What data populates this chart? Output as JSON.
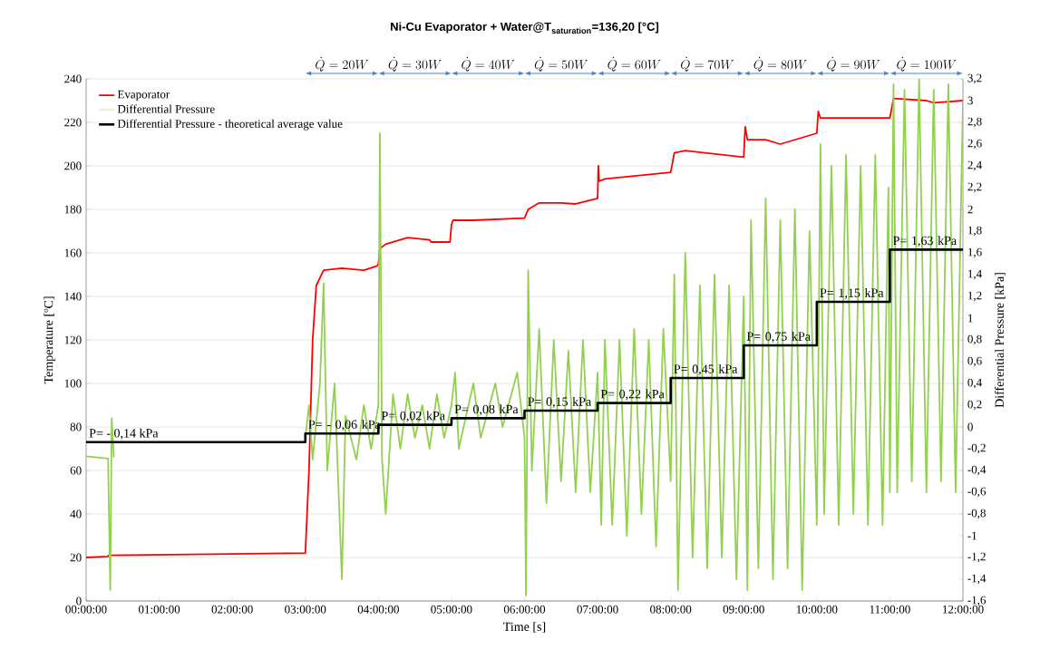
{
  "chart_data": {
    "type": "line",
    "title": "\\text{Ni-Cu Evaporator + Water@T}_{\\text{saturation}}\\text{=136,20 [°C]}",
    "xlabel": "Time [s]",
    "ylabel": "Temperature [ºC]",
    "y2label": "Differential Pressure [kPa]",
    "xlim": [
      0,
      12
    ],
    "xticks": [
      {
        "value": 0,
        "label": "00:00:00"
      },
      {
        "value": 1,
        "label": "01:00:00"
      },
      {
        "value": 2,
        "label": "02:00:00"
      },
      {
        "value": 3,
        "label": "03:00:00"
      },
      {
        "value": 4,
        "label": "04:00:00"
      },
      {
        "value": 5,
        "label": "05:00:00"
      },
      {
        "value": 6,
        "label": "06:00:00"
      },
      {
        "value": 7,
        "label": "07:00:00"
      },
      {
        "value": 8,
        "label": "08:00:00"
      },
      {
        "value": 9,
        "label": "09:00:00"
      },
      {
        "value": 10,
        "label": "10:00:00"
      },
      {
        "value": 11,
        "label": "11:00:00"
      },
      {
        "value": 12,
        "label": "12:00:00"
      }
    ],
    "ylim": [
      0,
      240
    ],
    "yticks": [
      0,
      20,
      40,
      60,
      80,
      100,
      120,
      140,
      160,
      180,
      200,
      220,
      240
    ],
    "y2lim": [
      -1.6,
      3.2
    ],
    "y2ticks": [
      {
        "value": -1.6,
        "label": "-1,6"
      },
      {
        "value": -1.4,
        "label": "-1,4"
      },
      {
        "value": -1.2,
        "label": "-1,2"
      },
      -1,
      {
        "value": -0.8,
        "label": "-0,8"
      },
      {
        "value": -0.6,
        "label": "-0,6"
      },
      {
        "value": -0.4,
        "label": "-0,4"
      },
      {
        "value": -0.2,
        "label": "-0,2"
      },
      0,
      {
        "value": 0.2,
        "label": "0,2"
      },
      {
        "value": 0.4,
        "label": "0,4"
      },
      {
        "value": 0.6,
        "label": "0,6"
      },
      {
        "value": 0.8,
        "label": "0,8"
      },
      1,
      {
        "value": 1.2,
        "label": "1,2"
      },
      {
        "value": 1.4,
        "label": "1,4"
      },
      {
        "value": 1.6,
        "label": "1,6"
      },
      {
        "value": 1.8,
        "label": "1,8"
      },
      2,
      {
        "value": 2.2,
        "label": "2,2"
      },
      {
        "value": 2.4,
        "label": "2,4"
      },
      {
        "value": 2.6,
        "label": "2,6"
      },
      {
        "value": 2.8,
        "label": "2,8"
      },
      3,
      {
        "value": 3.2,
        "label": "3,2"
      }
    ],
    "grid": "y",
    "legend": "top left",
    "series": [
      {
        "name": "Evaporator",
        "color": "#ff0000",
        "x": [
          0,
          0.3,
          0.31,
          3.0,
          3.05,
          3.1,
          3.15,
          3.25,
          3.5,
          3.8,
          3.98,
          4.0,
          4.02,
          4.1,
          4.4,
          4.7,
          4.72,
          4.98,
          5.0,
          5.02,
          5.3,
          6.0,
          6.05,
          6.2,
          6.5,
          6.7,
          7.0,
          7.01,
          7.02,
          7.1,
          8.0,
          8.05,
          8.2,
          9.0,
          9.02,
          9.05,
          9.3,
          9.5,
          10.0,
          10.02,
          10.05,
          11.0,
          11.05,
          11.5,
          11.6,
          12.0
        ],
        "values": [
          20,
          20.5,
          21,
          22,
          60,
          120,
          145,
          152,
          153,
          152,
          154,
          155,
          162,
          164,
          167,
          166,
          165,
          165,
          173,
          175,
          175,
          176,
          180,
          183,
          183,
          182.5,
          185,
          200,
          193,
          194,
          197,
          206,
          207,
          204,
          218,
          212,
          212,
          210,
          215,
          225,
          222,
          222,
          231,
          230,
          229,
          230
        ]
      },
      {
        "name": "Differential Pressure",
        "color": "#92d050",
        "axis": "y2",
        "x": [
          0.0,
          0.3,
          0.33,
          0.35,
          0.38,
          1.5,
          3.0,
          3.05,
          3.1,
          3.2,
          3.25,
          3.3,
          3.4,
          3.45,
          3.5,
          3.55,
          3.7,
          3.8,
          3.9,
          4.0,
          4.02,
          4.05,
          4.1,
          4.2,
          4.3,
          4.4,
          4.5,
          4.6,
          4.7,
          4.8,
          4.9,
          5.0,
          5.05,
          5.1,
          5.3,
          5.4,
          5.6,
          5.7,
          5.9,
          6.0,
          6.02,
          6.05,
          6.1,
          6.2,
          6.3,
          6.4,
          6.5,
          6.6,
          6.7,
          6.8,
          6.9,
          7.0,
          7.05,
          7.1,
          7.2,
          7.3,
          7.4,
          7.5,
          7.6,
          7.7,
          7.8,
          7.9,
          8.0,
          8.05,
          8.1,
          8.2,
          8.3,
          8.4,
          8.5,
          8.6,
          8.7,
          8.8,
          8.9,
          9.0,
          9.05,
          9.1,
          9.2,
          9.3,
          9.4,
          9.5,
          9.6,
          9.7,
          9.8,
          9.9,
          10.0,
          10.05,
          10.1,
          10.2,
          10.3,
          10.4,
          10.5,
          10.6,
          10.7,
          10.8,
          10.9,
          10.98,
          11.0,
          11.05,
          11.1,
          11.2,
          11.3,
          11.4,
          11.5,
          11.6,
          11.7,
          11.8,
          11.9,
          12.0
        ],
        "values": [
          -0.27,
          -0.29,
          -1.5,
          0.08,
          -0.28,
          null,
          -0.1,
          0.2,
          -0.3,
          0.4,
          1.32,
          -0.4,
          0.4,
          -0.5,
          -1.4,
          0.1,
          -0.3,
          0.2,
          -0.2,
          0.2,
          2.7,
          -0.3,
          -0.8,
          0.3,
          -0.2,
          0.3,
          -0.1,
          0.2,
          -0.2,
          0.3,
          -0.1,
          0.2,
          0.5,
          -0.2,
          0.4,
          -0.1,
          0.4,
          0,
          0.5,
          -0.1,
          -1.55,
          1.44,
          -0.4,
          0.9,
          -0.7,
          0.8,
          -0.5,
          0.7,
          -0.6,
          0.8,
          -0.6,
          0.5,
          -0.9,
          0.8,
          -0.9,
          0.8,
          -1.0,
          0.9,
          -0.8,
          0.8,
          -1.1,
          0.9,
          -0.5,
          1.4,
          -1.5,
          1.6,
          -1.2,
          1.3,
          -1.3,
          1.4,
          -1.2,
          1.3,
          -1.4,
          1.2,
          -1.5,
          1.9,
          -1.3,
          2.1,
          -1.4,
          1.9,
          -1.3,
          2.0,
          -1.5,
          1.8,
          -0.9,
          2.6,
          -0.8,
          2.4,
          -0.9,
          2.5,
          -0.8,
          2.4,
          -0.9,
          2.5,
          -0.9,
          2.2,
          -0.6,
          3.15,
          -0.6,
          3.1,
          -0.5,
          3.2,
          -0.6,
          3.1,
          -0.5,
          3.15,
          -0.6,
          3.0
        ]
      },
      {
        "name": "Differential Pressure - theoretical average value",
        "color": "#000000",
        "type": "step",
        "axis": "y2",
        "x": [
          0,
          3,
          4,
          5,
          6,
          7,
          8,
          9,
          10,
          11,
          12
        ],
        "values": [
          -0.14,
          -0.06,
          0.02,
          0.08,
          0.15,
          0.22,
          0.45,
          0.75,
          1.15,
          1.63,
          1.63
        ],
        "value_labels": [
          "P= - 0,14 kPa",
          "P= - 0,06 kPa",
          "P= 0,02 kPa",
          "P= 0,08 kPa",
          "P= 0,15 kPa",
          "P= 0,22 kPa",
          "P= 0,45 kPa",
          "P= 0,75 kPa",
          "P= 1,15 kPa",
          "P= 1,63 kPa",
          null
        ]
      }
    ],
    "annotations": [
      "\\dot{Q} = 20W",
      "\\dot{Q} = 30W",
      "\\dot{Q} = 40W",
      "\\dot{Q} = 50W",
      "\\dot{Q} = 60W",
      "\\dot{Q} = 70W",
      "\\dot{Q} = 80W",
      "\\dot{Q} = 90W",
      "\\dot{Q} = 100W"
    ]
  }
}
